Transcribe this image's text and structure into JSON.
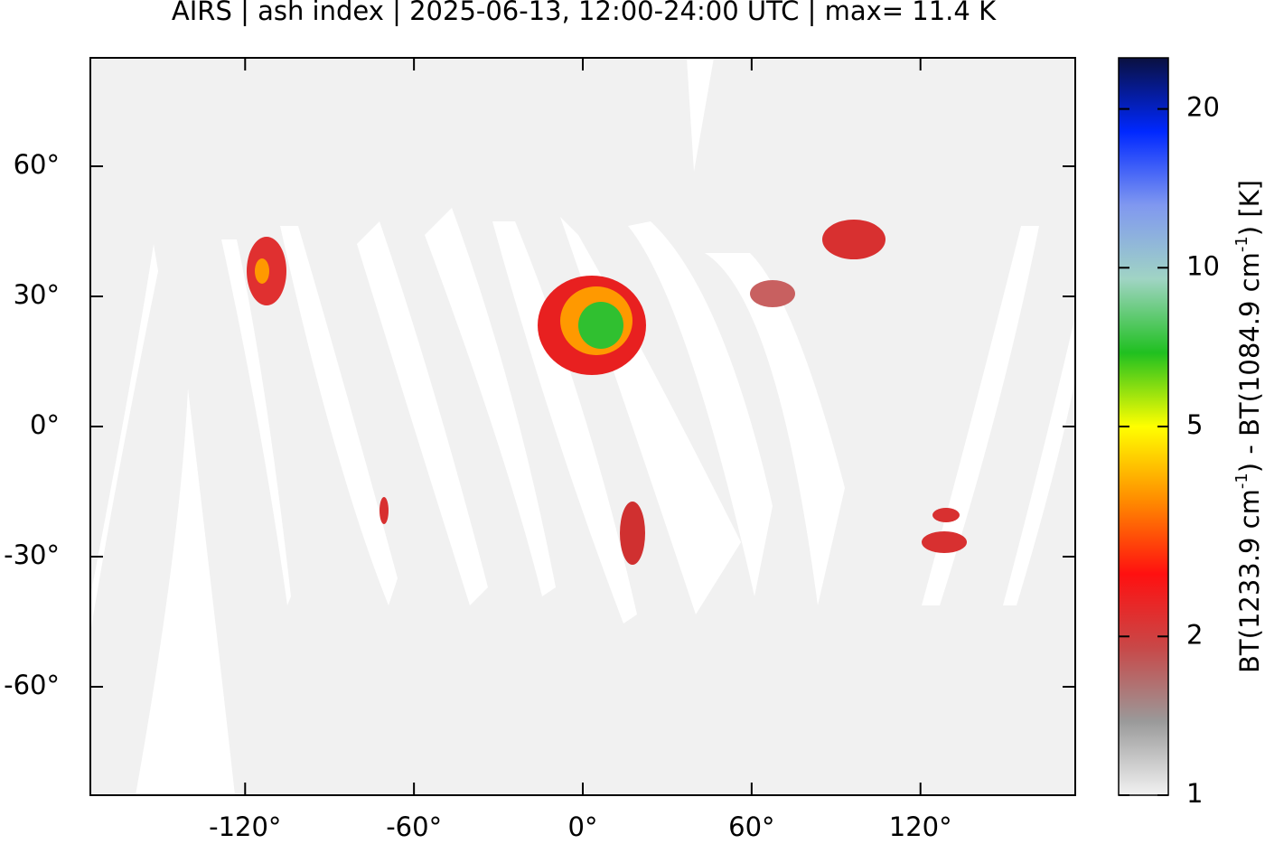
{
  "chart_data": {
    "type": "map",
    "title": "AIRS | ash index | 2025-06-13, 12:00-24:00 UTC | max= 11.4 K",
    "xlim": [
      -175,
      175
    ],
    "ylim": [
      -85,
      85
    ],
    "xticks": [
      {
        "value": -120,
        "label": "-120°"
      },
      {
        "value": -60,
        "label": "-60°"
      },
      {
        "value": 0,
        "label": "0°"
      },
      {
        "value": 60,
        "label": "60°"
      },
      {
        "value": 120,
        "label": "120°"
      }
    ],
    "yticks": [
      {
        "value": 60,
        "label": "60°"
      },
      {
        "value": 30,
        "label": "30°"
      },
      {
        "value": 0,
        "label": "0°"
      },
      {
        "value": -30,
        "label": "-30°"
      },
      {
        "value": -60,
        "label": "-60°"
      }
    ],
    "colorbar": {
      "label_parts": [
        "BT(1233.9 cm",
        "-1",
        ") - BT(1084.9 cm",
        "-1",
        ") [K]"
      ],
      "lim": [
        1,
        25
      ],
      "log": true,
      "ticks": [
        1,
        2,
        5,
        10,
        20
      ],
      "colors": [
        "#f2f2f2",
        "#9a9a9a",
        "#c84848",
        "#ff1010",
        "#ff8c00",
        "#ffff00",
        "#20c020",
        "#a0d4c4",
        "#8098f0",
        "#0028ff",
        "#0a1040"
      ]
    }
  }
}
